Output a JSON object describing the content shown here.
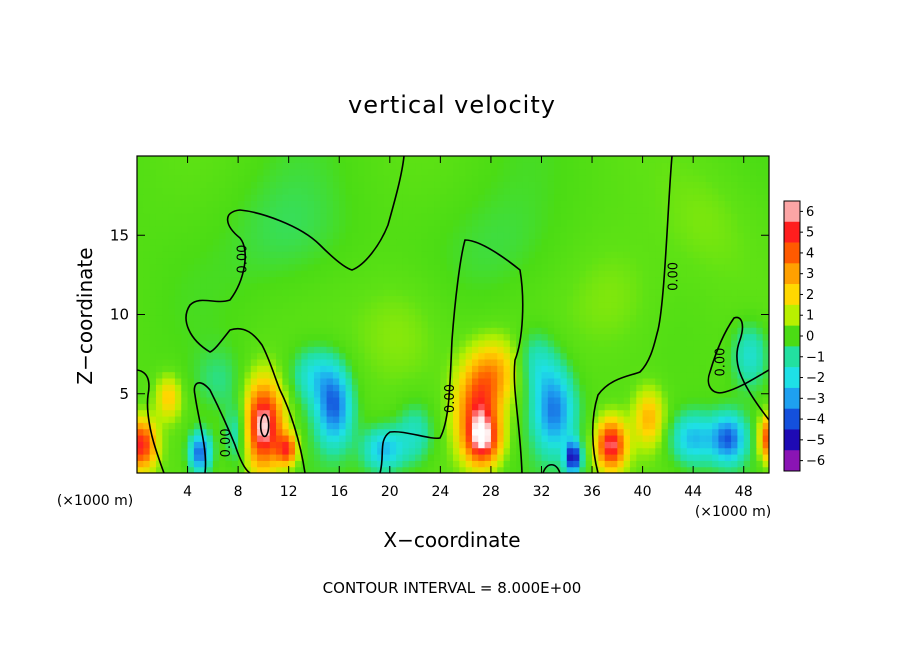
{
  "chart_data": {
    "type": "heatmap",
    "title": "vertical velocity",
    "xlabel": "X−coordinate",
    "ylabel": "Z−coordinate",
    "x_unit_left": "(×1000 m)",
    "x_unit_right": "(×1000 m)",
    "footer": "CONTOUR INTERVAL = 8.000E+00",
    "xlim": [
      0,
      50
    ],
    "ylim": [
      0,
      20
    ],
    "x_ticks": [
      4,
      8,
      12,
      16,
      20,
      24,
      28,
      32,
      36,
      40,
      44,
      48
    ],
    "y_ticks": [
      5,
      10,
      15
    ],
    "x_tick_labels": [
      "4",
      "8",
      "12",
      "16",
      "20",
      "24",
      "28",
      "32",
      "36",
      "40",
      "44",
      "48"
    ],
    "y_tick_labels": [
      "5",
      "10",
      "15"
    ],
    "colorbar": {
      "range": [
        -6,
        6
      ],
      "labels": [
        "6",
        "5",
        "4",
        "3",
        "2",
        "1",
        "0",
        "−1",
        "−2",
        "−3",
        "−4",
        "−5",
        "−6"
      ],
      "colors": [
        "#fca5a5",
        "#ff1e1e",
        "#ff5a00",
        "#ffa000",
        "#ffd800",
        "#b8f000",
        "#4bdc14",
        "#22e0a0",
        "#1ee0e6",
        "#1ea0f0",
        "#1450dc",
        "#1e0ab4",
        "#8a14b4"
      ]
    },
    "contour_label": "0.00",
    "contour_label_positions": [
      [
        8.4,
        13.5
      ],
      [
        42.5,
        12.4
      ],
      [
        24.8,
        4.7
      ],
      [
        7.1,
        1.9
      ],
      [
        46.2,
        7
      ]
    ],
    "features": [
      {
        "x": 10,
        "z": 3,
        "w": 6.0,
        "rx": 1.6,
        "rz": 2.8
      },
      {
        "x": 0.3,
        "z": 1.8,
        "w": 5.0,
        "rx": 1.2,
        "rz": 1.6
      },
      {
        "x": 11.9,
        "z": 1.5,
        "w": 4.0,
        "rx": 0.8,
        "rz": 1.0
      },
      {
        "x": 27,
        "z": 4,
        "w": 4.3,
        "rx": 1.8,
        "rz": 2.8
      },
      {
        "x": 27.4,
        "z": 2,
        "w": 3.8,
        "rx": 1.4,
        "rz": 1.6
      },
      {
        "x": 28.5,
        "z": 6.5,
        "w": 2.2,
        "rx": 2.0,
        "rz": 2.0
      },
      {
        "x": 37.5,
        "z": 1.8,
        "w": 5.3,
        "rx": 1.2,
        "rz": 1.6
      },
      {
        "x": 2.5,
        "z": 4.8,
        "w": 2.2,
        "rx": 1.0,
        "rz": 1.4
      },
      {
        "x": 5,
        "z": 1.3,
        "w": -4.0,
        "rx": 0.9,
        "rz": 1.3
      },
      {
        "x": 8,
        "z": 2.5,
        "w": -2.0,
        "rx": 1.0,
        "rz": 2.0
      },
      {
        "x": 15.6,
        "z": 4.2,
        "w": -3.6,
        "rx": 1.4,
        "rz": 2.4
      },
      {
        "x": 14,
        "z": 6.2,
        "w": -1.8,
        "rx": 1.8,
        "rz": 1.8
      },
      {
        "x": 19.5,
        "z": 1.5,
        "w": -2.6,
        "rx": 1.6,
        "rz": 1.4
      },
      {
        "x": 22,
        "z": 2.5,
        "w": -1.6,
        "rx": 1.5,
        "rz": 2.0
      },
      {
        "x": 33,
        "z": 4,
        "w": -3.4,
        "rx": 1.6,
        "rz": 2.6
      },
      {
        "x": 34.5,
        "z": 1.0,
        "w": -5.0,
        "rx": 0.6,
        "rz": 1.0
      },
      {
        "x": 31.5,
        "z": 7,
        "w": -1.5,
        "rx": 1.6,
        "rz": 2.0
      },
      {
        "x": 44,
        "z": 2.2,
        "w": -2.6,
        "rx": 1.8,
        "rz": 1.6
      },
      {
        "x": 46.8,
        "z": 2.2,
        "w": -3.6,
        "rx": 1.3,
        "rz": 1.5
      },
      {
        "x": 48.5,
        "z": 7.5,
        "w": -1.8,
        "rx": 1.4,
        "rz": 2.0
      },
      {
        "x": 40.5,
        "z": 3.5,
        "w": 2.5,
        "rx": 1.2,
        "rz": 1.8
      },
      {
        "x": 49.8,
        "z": 2.2,
        "w": 4.2,
        "rx": 0.6,
        "rz": 1.5
      },
      {
        "x": 6.5,
        "z": 5.8,
        "w": -0.8,
        "rx": 2.0,
        "rz": 2.0
      },
      {
        "x": 21,
        "z": 9,
        "w": 0.8,
        "rx": 4.0,
        "rz": 4.0
      },
      {
        "x": 38,
        "z": 11,
        "w": 0.7,
        "rx": 4.0,
        "rz": 4.0
      },
      {
        "x": 12,
        "z": 15,
        "w": -0.6,
        "rx": 5.0,
        "rz": 4.0
      },
      {
        "x": 29,
        "z": 14,
        "w": -0.5,
        "rx": 5.0,
        "rz": 4.0
      },
      {
        "x": 45,
        "z": 16,
        "w": 0.5,
        "rx": 4.0,
        "rz": 4.0
      }
    ]
  }
}
